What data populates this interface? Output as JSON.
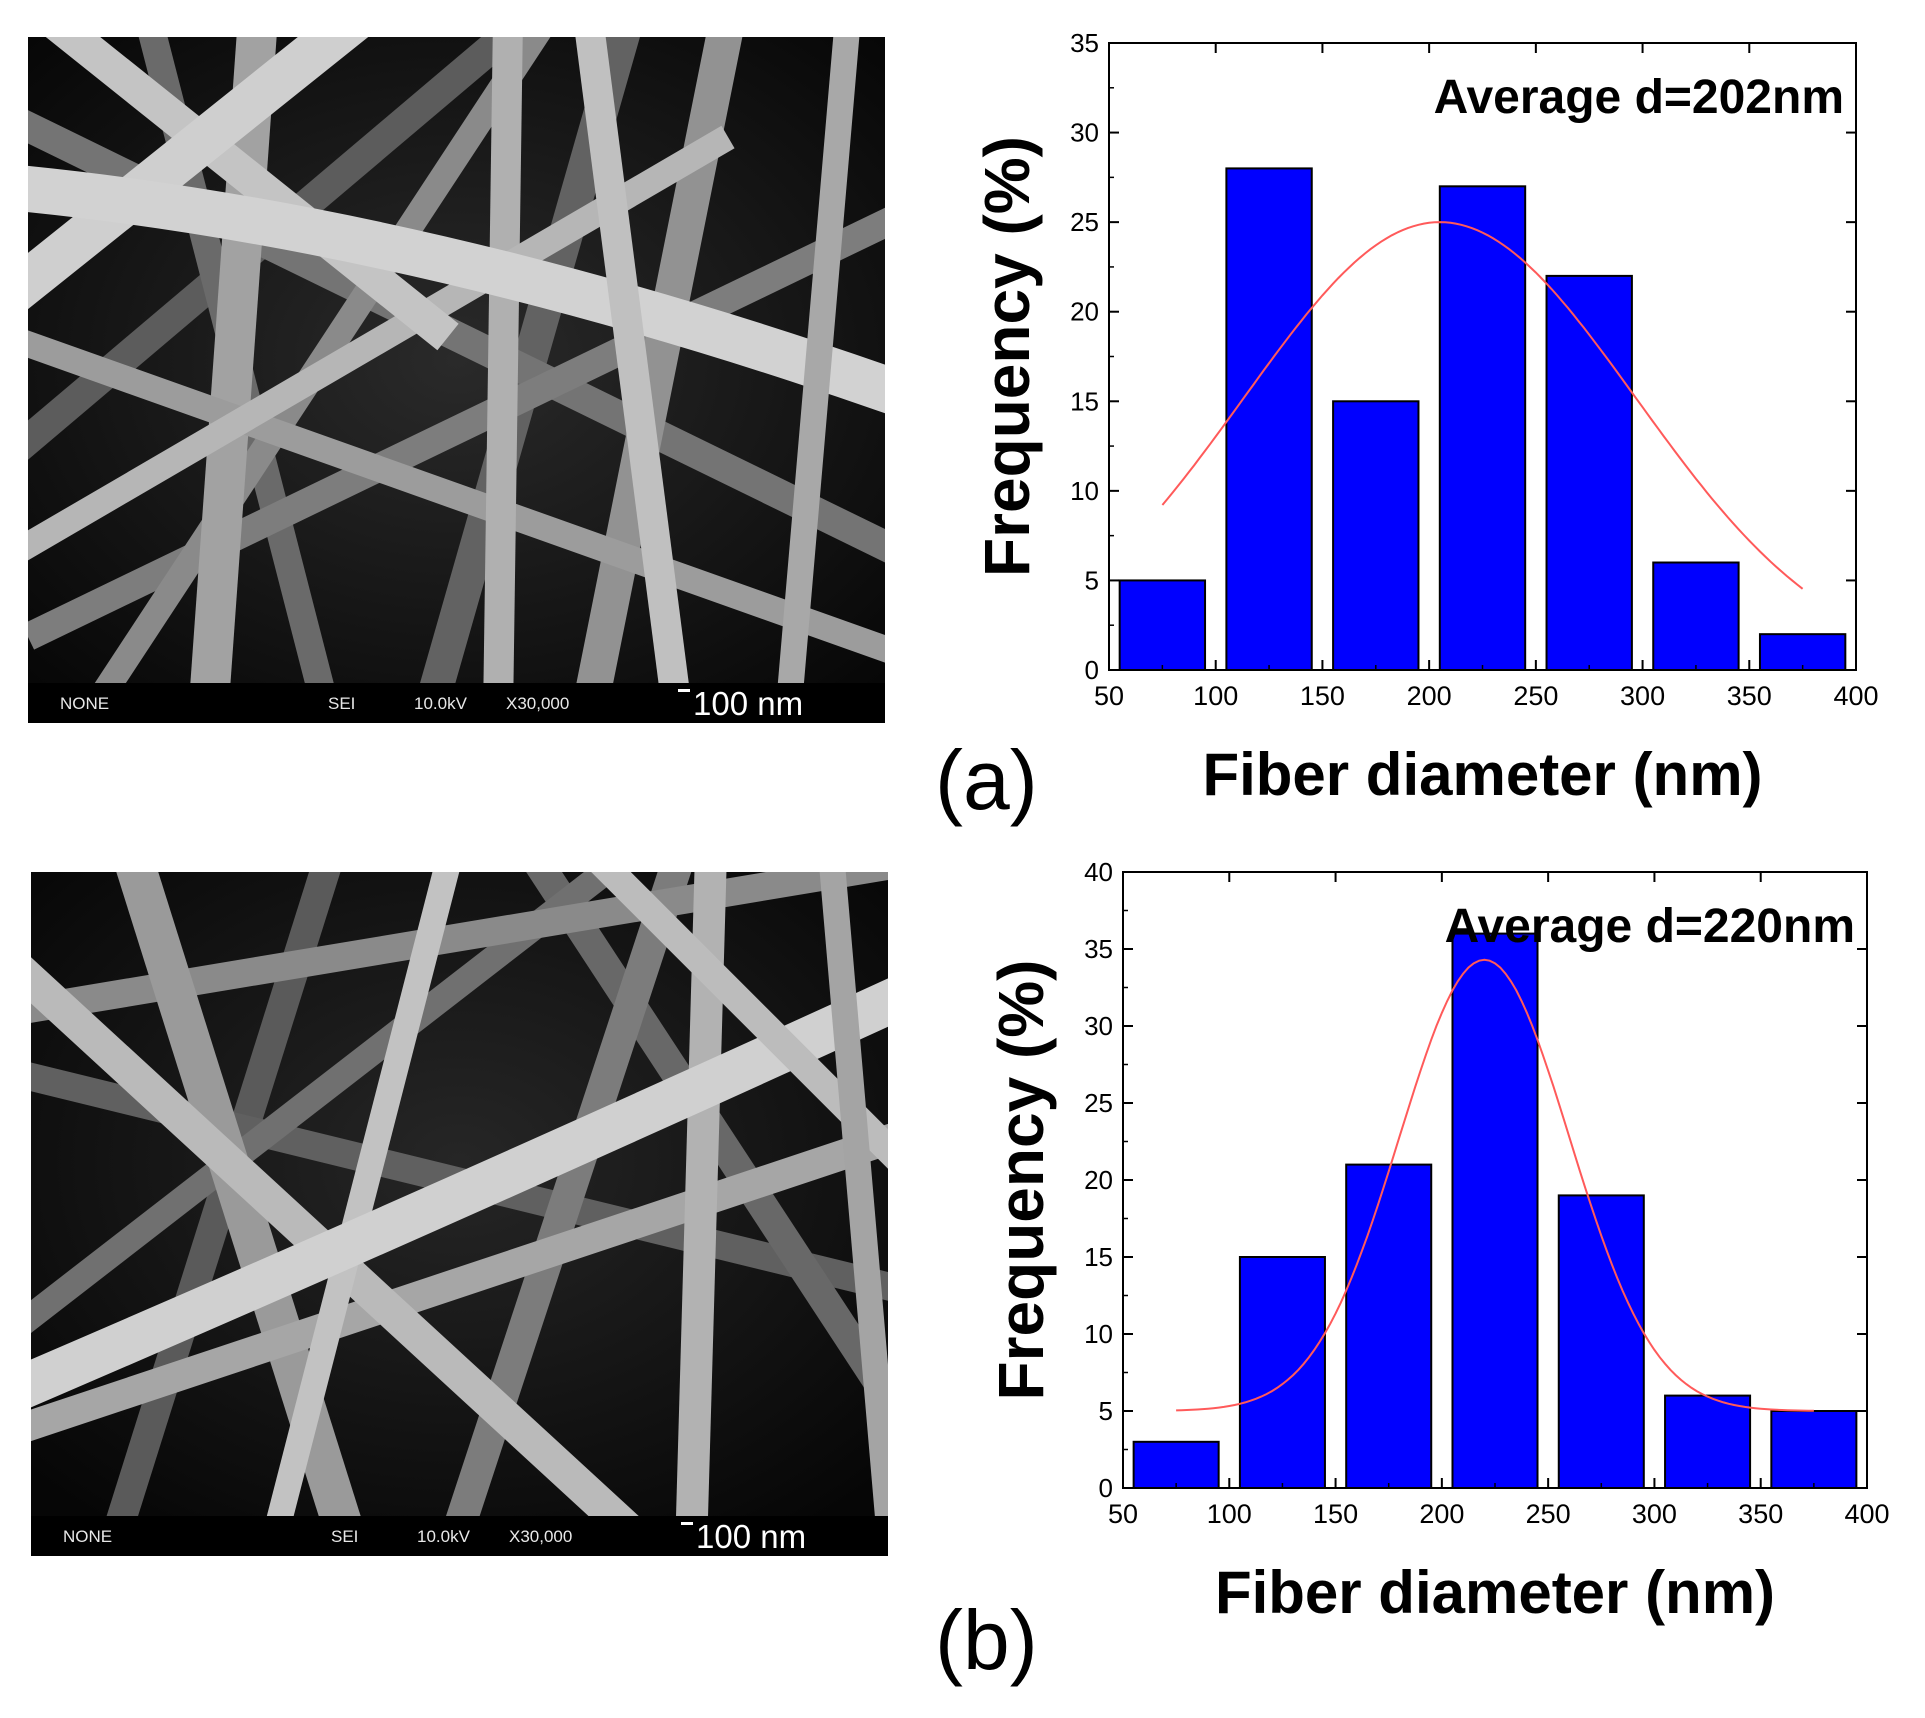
{
  "panels": [
    {
      "id": "a",
      "label": "(a)",
      "sem": {
        "info_left": "NONE",
        "info_mode": "SEI",
        "info_kv": "10.0kV",
        "info_mag": "X30,000",
        "scale_label": "100 nm"
      },
      "chart_data": {
        "type": "bar",
        "title": "",
        "annotation": "Average d=202nm",
        "xlabel": "Fiber diameter (nm)",
        "ylabel": "Frequency (%)",
        "xlim": [
          50,
          400
        ],
        "ylim": [
          0,
          35
        ],
        "xticks": [
          50,
          100,
          150,
          200,
          250,
          300,
          350,
          400
        ],
        "yticks": [
          0,
          5,
          10,
          15,
          20,
          25,
          30,
          35
        ],
        "bins": [
          [
            55,
            95
          ],
          [
            105,
            145
          ],
          [
            155,
            195
          ],
          [
            205,
            245
          ],
          [
            255,
            295
          ],
          [
            305,
            345
          ],
          [
            355,
            395
          ]
        ],
        "values": [
          5,
          28,
          15,
          27,
          22,
          6,
          2
        ],
        "bar_color": "#0000ff",
        "fit": {
          "type": "gaussian",
          "color": "#ff5a5a",
          "mean": 205,
          "sigma": 92,
          "peak": 25,
          "x_range": [
            75,
            375
          ]
        },
        "grid": false
      }
    },
    {
      "id": "b",
      "label": "(b)",
      "sem": {
        "info_left": "NONE",
        "info_mode": "SEI",
        "info_kv": "10.0kV",
        "info_mag": "X30,000",
        "scale_label": "100 nm"
      },
      "chart_data": {
        "type": "bar",
        "title": "",
        "annotation": "Average d=220nm",
        "xlabel": "Fiber diameter (nm)",
        "ylabel": "Frequency (%)",
        "xlim": [
          50,
          400
        ],
        "ylim": [
          0,
          40
        ],
        "xticks": [
          50,
          100,
          150,
          200,
          250,
          300,
          350,
          400
        ],
        "yticks": [
          0,
          5,
          10,
          15,
          20,
          25,
          30,
          35,
          40
        ],
        "bins": [
          [
            55,
            95
          ],
          [
            105,
            145
          ],
          [
            155,
            195
          ],
          [
            205,
            245
          ],
          [
            255,
            295
          ],
          [
            305,
            345
          ],
          [
            355,
            395
          ]
        ],
        "values": [
          3,
          15,
          21,
          36,
          19,
          6,
          5
        ],
        "bar_color": "#0000ff",
        "fit": {
          "type": "gaussian",
          "color": "#ff5a5a",
          "mean": 220,
          "sigma": 40,
          "peak": 29.3,
          "baseline": 5,
          "x_range": [
            75,
            375
          ]
        },
        "grid": false
      }
    }
  ]
}
